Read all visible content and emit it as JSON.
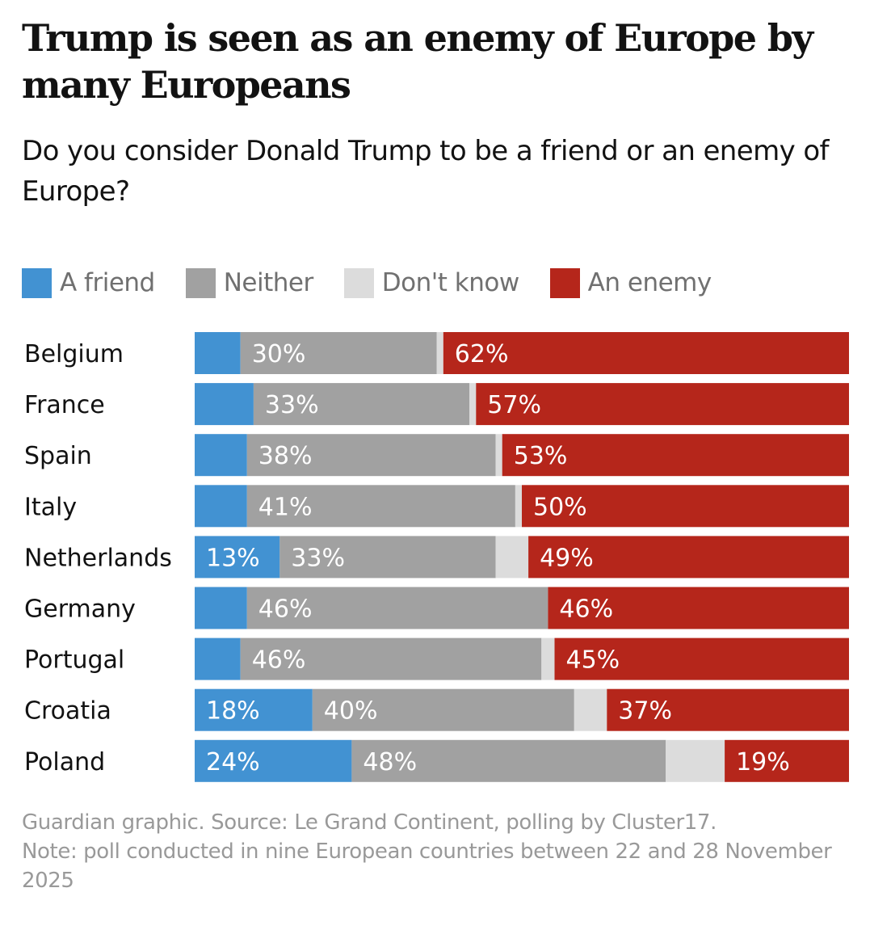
{
  "chart_data": {
    "type": "bar",
    "orientation": "horizontal",
    "stacked": true,
    "title": "Trump is seen as an enemy of Europe by many Europeans",
    "subtitle": "Do you consider Donald Trump to be a friend or an enemy of Europe?",
    "xlabel": "",
    "ylabel": "",
    "xlim": [
      0,
      100
    ],
    "unit": "%",
    "grid": false,
    "legend_position": "top-left",
    "categories": [
      "Belgium",
      "France",
      "Spain",
      "Italy",
      "Netherlands",
      "Germany",
      "Portugal",
      "Croatia",
      "Poland"
    ],
    "series": [
      {
        "key": "friend",
        "name": "A friend",
        "color": "#4292d2",
        "values": [
          7,
          9,
          8,
          8,
          13,
          8,
          7,
          18,
          24
        ],
        "labels": [
          "",
          "",
          "",
          "",
          "13%",
          "",
          "",
          "18%",
          "24%"
        ]
      },
      {
        "key": "neither",
        "name": "Neither",
        "color": "#a1a1a1",
        "values": [
          30,
          33,
          38,
          41,
          33,
          46,
          46,
          40,
          48
        ],
        "labels": [
          "30%",
          "33%",
          "38%",
          "41%",
          "33%",
          "46%",
          "46%",
          "40%",
          "48%"
        ]
      },
      {
        "key": "dont_know",
        "name": "Don't know",
        "color": "#dcdcdc",
        "values": [
          1,
          1,
          1,
          1,
          5,
          0,
          2,
          5,
          9
        ],
        "labels": [
          "",
          "",
          "",
          "",
          "",
          "",
          "",
          "",
          ""
        ]
      },
      {
        "key": "enemy",
        "name": "An enemy",
        "color": "#b5261b",
        "values": [
          62,
          57,
          53,
          50,
          49,
          46,
          45,
          37,
          19
        ],
        "labels": [
          "62%",
          "57%",
          "53%",
          "50%",
          "49%",
          "46%",
          "45%",
          "37%",
          "19%"
        ]
      }
    ],
    "footer": {
      "source": "Guardian graphic. Source: Le Grand Continent, polling by Cluster17.",
      "note": "Note: poll conducted in nine European countries between 22 and 28 November 2025"
    }
  }
}
